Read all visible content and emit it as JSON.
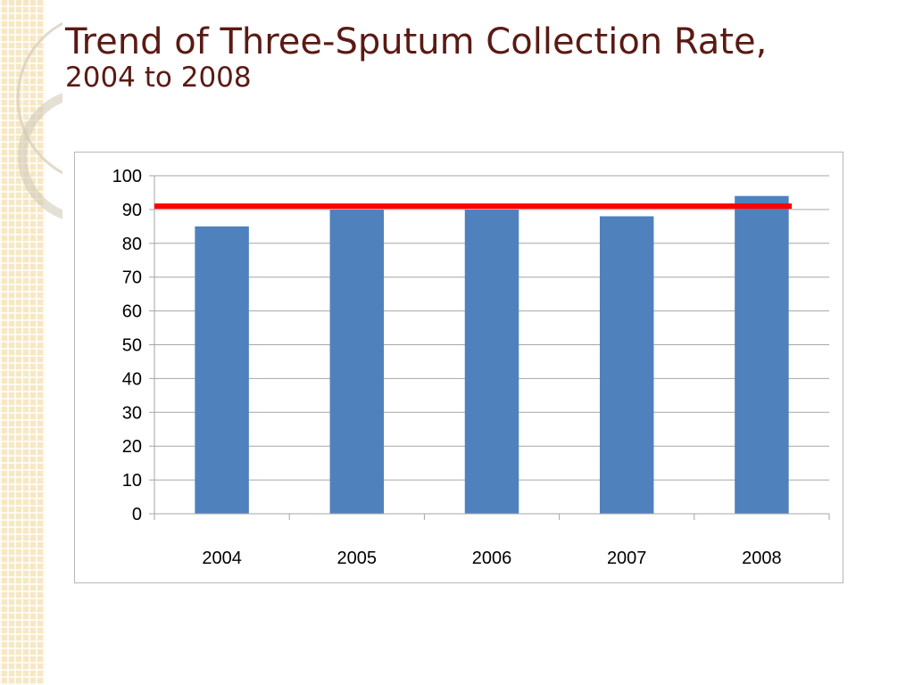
{
  "slide": {
    "title_line1": "Trend of  Three-Sputum Collection Rate,",
    "title_line2": "2004 to 2008"
  },
  "colors": {
    "title": "#5a1a14",
    "bar": "#4f81bd",
    "target_line": "#ff0000",
    "gridline": "#a6a6a6",
    "side_strip": "#f6e8c4"
  },
  "chart_data": {
    "type": "bar",
    "categories": [
      "2004",
      "2005",
      "2006",
      "2007",
      "2008"
    ],
    "values": [
      85,
      90,
      90,
      88,
      94
    ],
    "reference_line": 91,
    "ylim": [
      0,
      100
    ],
    "yticks": [
      0,
      10,
      20,
      30,
      40,
      50,
      60,
      70,
      80,
      90,
      100
    ],
    "xlabel": "",
    "ylabel": "",
    "grid": true,
    "legend": "none"
  }
}
